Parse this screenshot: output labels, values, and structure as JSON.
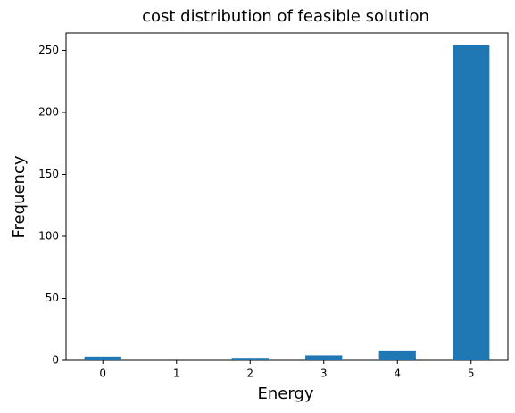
{
  "chart_data": {
    "type": "bar",
    "title": "cost distribution of feasible solution",
    "x_label": "Energy",
    "y_label": "Frequency",
    "categories": [
      "0",
      "1",
      "2",
      "3",
      "4",
      "5"
    ],
    "values": [
      3,
      0,
      2,
      4,
      8,
      254
    ],
    "color": "#1f77b4",
    "ylim": [
      0,
      264
    ],
    "yticks": [
      0,
      50,
      100,
      150,
      200,
      250
    ],
    "grid": false
  }
}
